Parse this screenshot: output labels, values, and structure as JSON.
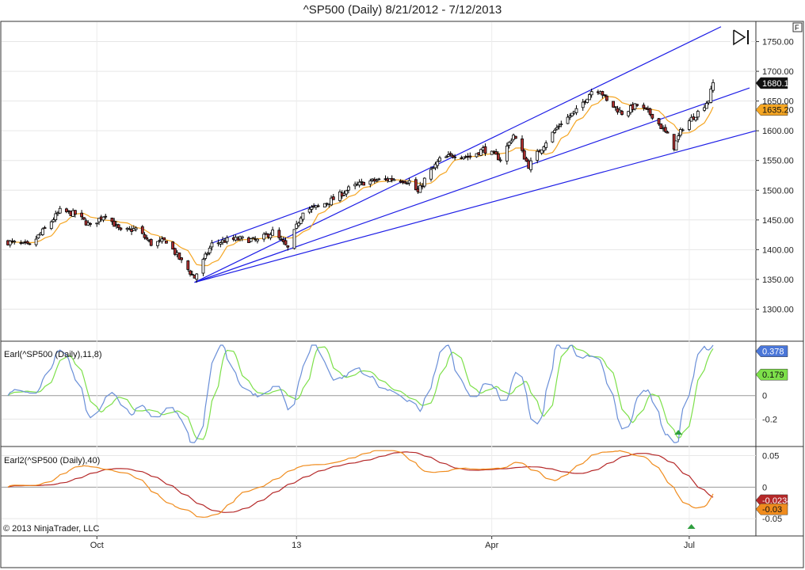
{
  "title": "^SP500 (Daily)  8/21/2012 - 7/12/2013",
  "copyright": "© 2013 NinjaTrader, LLC",
  "toolbar_icon": "play-to-end-icon",
  "corner_marker": "F",
  "x_axis": {
    "labels": [
      "Oct",
      "13",
      "Apr",
      "Jul"
    ]
  },
  "panels": {
    "price": {
      "ylim": [
        1250,
        1780
      ],
      "ticks": [
        "1300.00",
        "1350.00",
        "1400.00",
        "1450.00",
        "1500.00",
        "1550.00",
        "1600.00",
        "1650.00",
        "1700.00",
        "1750.00"
      ],
      "last_price_tag": "1680.19",
      "ma_tag": "1635.20"
    },
    "earl1": {
      "label": "Earl(^SP500 (Daily),11,8)",
      "ylim": [
        -0.42,
        0.45
      ],
      "ticks": [
        "-0.2",
        "0"
      ],
      "tag_fast": "0.378",
      "tag_slow": "0.179"
    },
    "earl2": {
      "label": "Earl2(^SP500 (Daily),40)",
      "ylim": [
        -0.075,
        0.062
      ],
      "ticks": [
        "-0.05",
        "0",
        "0.05"
      ],
      "tag_orange": "-0.03",
      "tag_red": "-0.0234"
    }
  },
  "colors": {
    "up_candle": "#ffffff",
    "down_candle": "#b03030",
    "wick": "#000000",
    "moving_average": "#f5a623",
    "trend_lines": "#1e1ee6",
    "earl_fast": "#6a8fd8",
    "earl_slow": "#7de04a",
    "earl2_orange": "#f08c1e",
    "earl2_red": "#b52828",
    "signal_marker": "#2e9e3e",
    "zero_line": "#999999"
  },
  "chart_data": {
    "type": "candlestick",
    "series_name": "^SP500 (Daily)",
    "approx_close_path": [
      [
        "2012-08-21",
        1413
      ],
      [
        "2012-08-31",
        1406
      ],
      [
        "2012-09-07",
        1435
      ],
      [
        "2012-09-14",
        1465
      ],
      [
        "2012-09-21",
        1460
      ],
      [
        "2012-09-28",
        1440
      ],
      [
        "2012-10-05",
        1460
      ],
      [
        "2012-10-12",
        1430
      ],
      [
        "2012-10-19",
        1435
      ],
      [
        "2012-10-26",
        1410
      ],
      [
        "2012-11-02",
        1415
      ],
      [
        "2012-11-09",
        1380
      ],
      [
        "2012-11-15",
        1353
      ],
      [
        "2012-11-23",
        1409
      ],
      [
        "2012-11-30",
        1416
      ],
      [
        "2012-12-07",
        1418
      ],
      [
        "2012-12-14",
        1415
      ],
      [
        "2012-12-21",
        1430
      ],
      [
        "2012-12-28",
        1402
      ],
      [
        "2013-01-04",
        1466
      ],
      [
        "2013-01-11",
        1472
      ],
      [
        "2013-01-18",
        1485
      ],
      [
        "2013-01-25",
        1502
      ],
      [
        "2013-02-01",
        1513
      ],
      [
        "2013-02-08",
        1517
      ],
      [
        "2013-02-15",
        1519
      ],
      [
        "2013-02-22",
        1515
      ],
      [
        "2013-02-26",
        1496
      ],
      [
        "2013-03-01",
        1518
      ],
      [
        "2013-03-08",
        1551
      ],
      [
        "2013-03-15",
        1560
      ],
      [
        "2013-03-22",
        1556
      ],
      [
        "2013-03-28",
        1569
      ],
      [
        "2013-04-05",
        1553
      ],
      [
        "2013-04-11",
        1593
      ],
      [
        "2013-04-18",
        1541
      ],
      [
        "2013-04-26",
        1582
      ],
      [
        "2013-05-03",
        1614
      ],
      [
        "2013-05-10",
        1633
      ],
      [
        "2013-05-17",
        1667
      ],
      [
        "2013-05-21",
        1669
      ],
      [
        "2013-05-24",
        1649
      ],
      [
        "2013-05-31",
        1630
      ],
      [
        "2013-06-07",
        1643
      ],
      [
        "2013-06-14",
        1626
      ],
      [
        "2013-06-21",
        1592
      ],
      [
        "2013-06-24",
        1573
      ],
      [
        "2013-06-28",
        1606
      ],
      [
        "2013-07-05",
        1631
      ],
      [
        "2013-07-10",
        1652
      ],
      [
        "2013-07-12",
        1680
      ]
    ],
    "annotations": {
      "last_price": 1680.19,
      "moving_average_last": 1635.2,
      "trend_lines": "three lines fanning out from the 2012-11-15 low"
    },
    "indicators": [
      {
        "name": "Earl(^SP500 (Daily),11,8)",
        "last_fast": 0.378,
        "last_slow": 0.179
      },
      {
        "name": "Earl2(^SP500 (Daily),40)",
        "last_orange": -0.03,
        "last_red": -0.0234
      }
    ]
  }
}
